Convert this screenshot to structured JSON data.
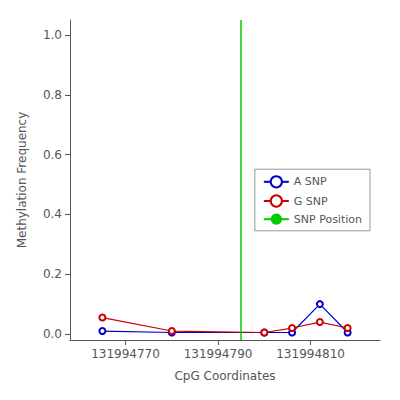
{
  "chart_data": {
    "type": "line",
    "xlabel": "CpG Coordinates",
    "ylabel": "Methylation Frequency",
    "x": [
      131994765,
      131994780,
      131994800,
      131994806,
      131994812,
      131994818
    ],
    "series": [
      {
        "name": "A SNP",
        "type": "line",
        "color": "#0000cc",
        "marker": "circle",
        "values": [
          0.01,
          0.005,
          0.005,
          0.005,
          0.1,
          0.005
        ]
      },
      {
        "name": "G SNP",
        "type": "line",
        "color": "#cc0000",
        "marker": "circle",
        "values": [
          0.055,
          0.01,
          0.005,
          0.02,
          0.04,
          0.02
        ]
      },
      {
        "name": "SNP Position",
        "type": "vline",
        "color": "#00cc00",
        "x": 131994795
      }
    ],
    "xlim": [
      131994758,
      131994825
    ],
    "xticks": [
      131994770,
      131994790,
      131994810
    ],
    "ylim": [
      -0.02,
      1.05
    ],
    "yticks": [
      {
        "value": 0,
        "label": "0.0"
      },
      0.2,
      0.4,
      0.6,
      0.8,
      {
        "value": 1,
        "label": "1.0"
      }
    ],
    "grid": false,
    "legend": "center right"
  }
}
